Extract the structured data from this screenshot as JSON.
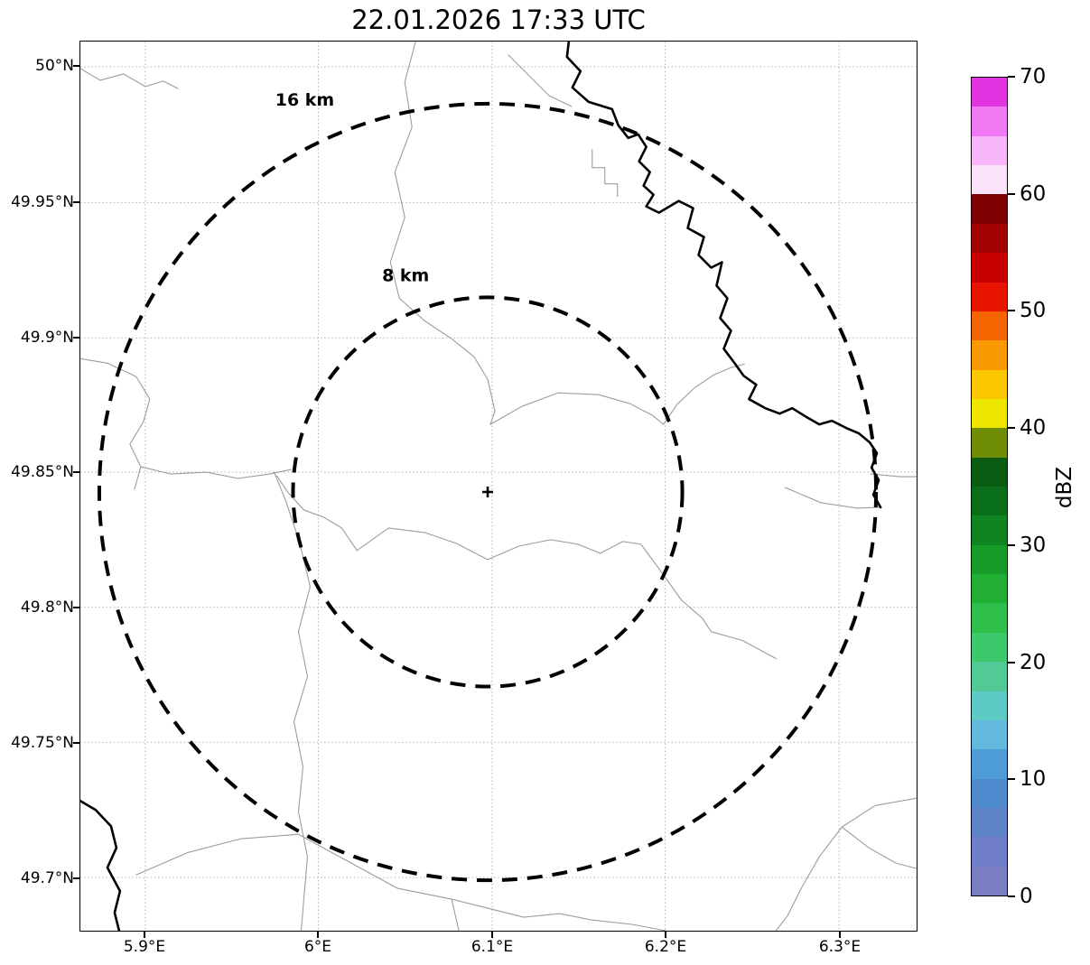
{
  "title": "22.01.2026 17:33 UTC",
  "axes": {
    "y_ticks": [
      {
        "label": "50°N"
      },
      {
        "label": "49.95°N"
      },
      {
        "label": "49.9°N"
      },
      {
        "label": "49.85°N"
      },
      {
        "label": "49.8°N"
      },
      {
        "label": "49.75°N"
      },
      {
        "label": "49.7°N"
      }
    ],
    "x_ticks": [
      {
        "label": "5.9°E"
      },
      {
        "label": "6°E"
      },
      {
        "label": "6.1°E"
      },
      {
        "label": "6.2°E"
      },
      {
        "label": "6.3°E"
      }
    ]
  },
  "map": {
    "range_rings": [
      {
        "label": "16 km",
        "radius_km": 16
      },
      {
        "label": "8 km",
        "radius_km": 8
      }
    ],
    "center_marker_symbol": "+"
  },
  "colorbar": {
    "label": "dBZ",
    "min": 0,
    "max": 70,
    "step": 2.5,
    "ticks": [
      {
        "value": 0,
        "label": "0"
      },
      {
        "value": 10,
        "label": "10"
      },
      {
        "value": 20,
        "label": "20"
      },
      {
        "value": 30,
        "label": "30"
      },
      {
        "value": 40,
        "label": "40"
      },
      {
        "value": 50,
        "label": "50"
      },
      {
        "value": 60,
        "label": "60"
      },
      {
        "value": 70,
        "label": "70"
      }
    ],
    "colors": [
      "#7a7fc3",
      "#6f7ec6",
      "#5e83c9",
      "#4e8bce",
      "#4d9cd6",
      "#63b9dd",
      "#5ecac6",
      "#52c996",
      "#3ec86d",
      "#2dbf4a",
      "#20af33",
      "#179b29",
      "#0f8521",
      "#0a6f19",
      "#0a5c12",
      "#6e8c04",
      "#efe600",
      "#fbc800",
      "#fa9800",
      "#f56400",
      "#e81400",
      "#c70000",
      "#a30000",
      "#7c0000",
      "#fbe3fb",
      "#f9b5f9",
      "#f378f3",
      "#e235e2"
    ]
  }
}
